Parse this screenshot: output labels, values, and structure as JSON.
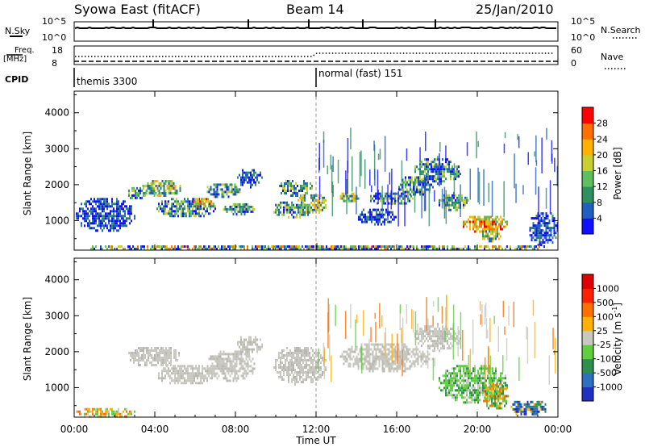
{
  "header": {
    "title": "Syowa East (fitACF)",
    "beam": "Beam 14",
    "date": "25/Jan/2010"
  },
  "nsky_panel": {
    "label": "N.Sky",
    "left_ticks": [
      "10^5",
      "10^0"
    ],
    "right_label": "N.Search",
    "right_ticks": [
      "10^5",
      "10^0"
    ]
  },
  "freq_panel": {
    "label_line1": "Freq.",
    "label_line2": "[MHz]",
    "left_ticks": [
      "18",
      "8"
    ],
    "right_label": "Nave",
    "right_ticks": [
      "60",
      "0"
    ]
  },
  "cpid_panel": {
    "label": "CPID",
    "modes": [
      {
        "name": "themis 3300",
        "start_hour": 0
      },
      {
        "name": "normal (fast) 151",
        "start_hour": 12
      }
    ]
  },
  "x_axis": {
    "label": "Time UT",
    "tick_labels": [
      "00:00",
      "04:00",
      "08:00",
      "12:00",
      "16:00",
      "20:00",
      "00:00"
    ],
    "range_hours": [
      0,
      24
    ]
  },
  "chart_data": [
    {
      "type": "heatmap",
      "title": "",
      "ylabel": "Slant Range [km]",
      "y_ticks": [
        "1000",
        "2000",
        "3000",
        "4000"
      ],
      "ylim": [
        180,
        4600
      ],
      "colorbar": {
        "label": "Power [dB]",
        "tick_labels": [
          "4",
          "8",
          "12",
          "16",
          "20",
          "24",
          "28"
        ],
        "colors": [
          "#1010ff",
          "#1f5fbf",
          "#2f8f5f",
          "#5fbf5f",
          "#c8d030",
          "#ffb000",
          "#ff7000",
          "#ff0000"
        ]
      },
      "echo_regions": [
        {
          "t0": 0.0,
          "t1": 3.0,
          "r0": 700,
          "r1": 1700,
          "level": "low"
        },
        {
          "t0": 2.6,
          "t1": 3.6,
          "r0": 1600,
          "r1": 2000,
          "level": "mid"
        },
        {
          "t0": 3.3,
          "t1": 5.3,
          "r0": 1700,
          "r1": 2200,
          "level": "high"
        },
        {
          "t0": 4.0,
          "t1": 7.0,
          "r0": 1100,
          "r1": 1700,
          "level": "mid"
        },
        {
          "t0": 5.8,
          "t1": 6.8,
          "r0": 1400,
          "r1": 1700,
          "level": "peak"
        },
        {
          "t0": 6.5,
          "t1": 8.2,
          "r0": 1650,
          "r1": 2100,
          "level": "mid"
        },
        {
          "t0": 7.3,
          "t1": 9.0,
          "r0": 1200,
          "r1": 1550,
          "level": "mid"
        },
        {
          "t0": 8.0,
          "t1": 9.3,
          "r0": 1950,
          "r1": 2500,
          "level": "low"
        },
        {
          "t0": 9.8,
          "t1": 11.8,
          "r0": 1100,
          "r1": 1600,
          "level": "mid"
        },
        {
          "t0": 10.0,
          "t1": 11.8,
          "r0": 1700,
          "r1": 2200,
          "level": "mid"
        },
        {
          "t0": 11.0,
          "t1": 12.5,
          "r0": 1200,
          "r1": 1800,
          "level": "high"
        },
        {
          "t0": 13.1,
          "t1": 14.1,
          "r0": 1550,
          "r1": 1850,
          "level": "high"
        },
        {
          "t0": 14.0,
          "t1": 16.0,
          "r0": 900,
          "r1": 1400,
          "level": "low"
        },
        {
          "t0": 14.6,
          "t1": 16.8,
          "r0": 1450,
          "r1": 1850,
          "level": "mid"
        },
        {
          "t0": 16.0,
          "t1": 17.8,
          "r0": 1700,
          "r1": 2300,
          "level": "mid"
        },
        {
          "t0": 16.8,
          "t1": 19.2,
          "r0": 2050,
          "r1": 2800,
          "level": "mid"
        },
        {
          "t0": 18.0,
          "t1": 19.6,
          "r0": 1300,
          "r1": 1800,
          "level": "mid"
        },
        {
          "t0": 19.2,
          "t1": 21.5,
          "r0": 700,
          "r1": 1200,
          "level": "peak"
        },
        {
          "t0": 20.0,
          "t1": 21.2,
          "r0": 450,
          "r1": 800,
          "level": "high"
        },
        {
          "t0": 22.5,
          "t1": 24.0,
          "r0": 300,
          "r1": 1300,
          "level": "low"
        },
        {
          "t0": 0.0,
          "t1": 24.0,
          "r0": 180,
          "r1": 380,
          "level": "mixed"
        }
      ]
    },
    {
      "type": "heatmap",
      "title": "",
      "ylabel": "Slant Range [km]",
      "y_ticks": [
        "1000",
        "2000",
        "3000",
        "4000"
      ],
      "ylim": [
        180,
        4600
      ],
      "colorbar": {
        "label": "Velocity [m s^-1]",
        "tick_labels": [
          "1000",
          "500",
          "100",
          "25",
          "-25",
          "-100",
          "-500",
          "-1000"
        ],
        "colors": [
          "#2030c0",
          "#2f6fbf",
          "#2f8f4f",
          "#5fcf3f",
          "#c8c8c0",
          "#ffb000",
          "#ff7000",
          "#ff2000",
          "#e00000"
        ]
      },
      "echo_regions": [
        {
          "t0": 2.6,
          "t1": 5.3,
          "r0": 1600,
          "r1": 2200,
          "level": "grey"
        },
        {
          "t0": 4.0,
          "t1": 7.0,
          "r0": 1100,
          "r1": 1700,
          "level": "grey"
        },
        {
          "t0": 6.5,
          "t1": 9.0,
          "r0": 1200,
          "r1": 2100,
          "level": "grey"
        },
        {
          "t0": 8.0,
          "t1": 9.3,
          "r0": 1950,
          "r1": 2500,
          "level": "grey"
        },
        {
          "t0": 9.8,
          "t1": 12.5,
          "r0": 1100,
          "r1": 2200,
          "level": "grey"
        },
        {
          "t0": 13.1,
          "t1": 17.8,
          "r0": 1450,
          "r1": 2300,
          "level": "grey"
        },
        {
          "t0": 16.8,
          "t1": 19.2,
          "r0": 2050,
          "r1": 2800,
          "level": "grey"
        },
        {
          "t0": 18.0,
          "t1": 21.5,
          "r0": 600,
          "r1": 1700,
          "level": "green"
        },
        {
          "t0": 20.2,
          "t1": 21.5,
          "r0": 400,
          "r1": 1200,
          "level": "orange"
        },
        {
          "t0": 21.5,
          "t1": 23.5,
          "r0": 250,
          "r1": 700,
          "level": "blue"
        },
        {
          "t0": 0.0,
          "t1": 3.0,
          "r0": 180,
          "r1": 500,
          "level": "mixed"
        }
      ]
    }
  ]
}
